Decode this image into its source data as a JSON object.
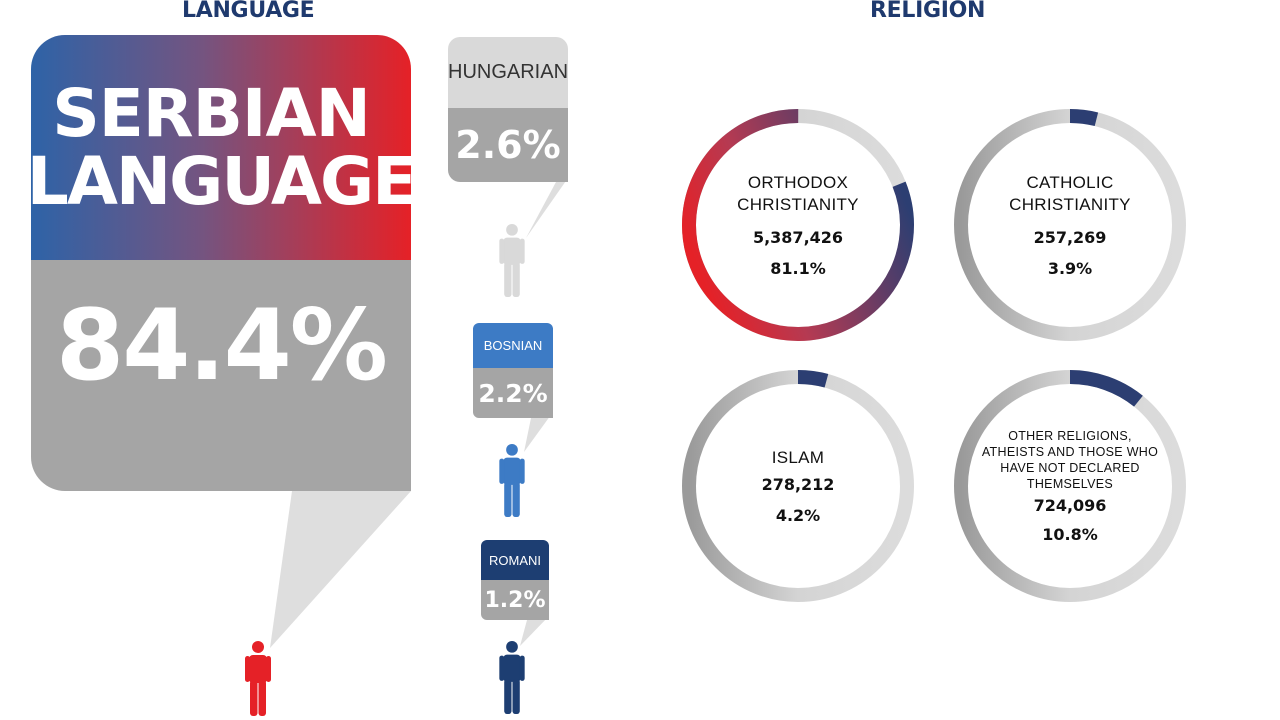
{
  "titles": {
    "language": "LANGUAGE",
    "religion": "RELIGION"
  },
  "language": {
    "serbian": {
      "line1": "SERBIAN",
      "line2": "LANGUAGE",
      "percent": "84.4%",
      "color": "#e52127"
    },
    "hungarian": {
      "label": "HUNGARIAN",
      "percent": "2.6%",
      "color": "#d9d9d9"
    },
    "bosnian": {
      "label": "BOSNIAN",
      "percent": "2.2%",
      "color": "#3d7bc5"
    },
    "romani": {
      "label": "ROMANI",
      "percent": "1.2%",
      "color": "#1d3e72"
    }
  },
  "religion": [
    {
      "name_lines": [
        "ORTHODOX",
        "CHRISTIANITY"
      ],
      "count": "5,387,426",
      "percent": "81.1%",
      "value": 81.1
    },
    {
      "name_lines": [
        "CATHOLIC",
        "CHRISTIANITY"
      ],
      "count": "257,269",
      "percent": "3.9%",
      "value": 3.9
    },
    {
      "name_lines": [
        "ISLAM"
      ],
      "count": "278,212",
      "percent": "4.2%",
      "value": 4.2
    },
    {
      "name_lines": [
        "OTHER RELIGIONS,",
        "ATHEISTS AND THOSE WHO",
        "HAVE NOT DECLARED",
        "THEMSELVES"
      ],
      "count": "724,096",
      "percent": "10.8%",
      "value": 10.8
    }
  ],
  "chart_data": [
    {
      "type": "bar",
      "title": "LANGUAGE",
      "categories": [
        "SERBIAN LANGUAGE",
        "HUNGARIAN",
        "BOSNIAN",
        "ROMANI"
      ],
      "values": [
        84.4,
        2.6,
        2.2,
        1.2
      ]
    },
    {
      "type": "pie",
      "title": "RELIGION",
      "categories": [
        "ORTHODOX CHRISTIANITY",
        "CATHOLIC CHRISTIANITY",
        "ISLAM",
        "OTHER RELIGIONS, ATHEISTS AND THOSE WHO HAVE NOT DECLARED THEMSELVES"
      ],
      "values": [
        81.1,
        3.9,
        4.2,
        10.8
      ],
      "counts": [
        5387426,
        257269,
        278212,
        724096
      ]
    }
  ],
  "colors": {
    "accent_red": "#e52127",
    "accent_navy": "#2c3e72",
    "ring_gray": "#d9d9d9",
    "title_blue": "#1f3a6e"
  }
}
